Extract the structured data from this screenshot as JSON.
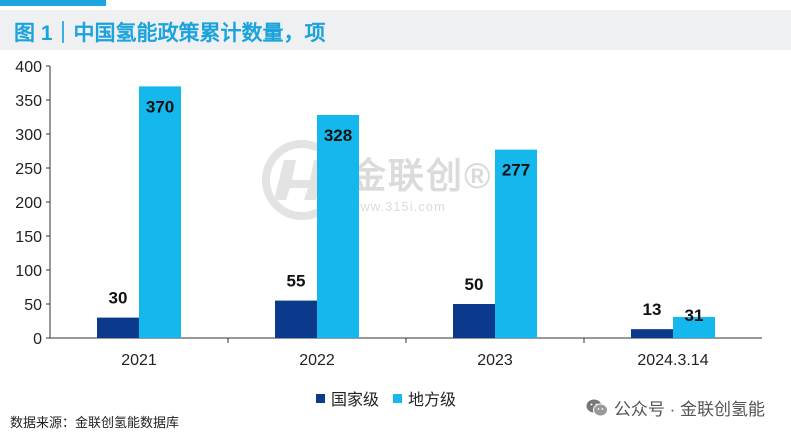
{
  "figure": {
    "title": "图 1｜中国氢能政策累计数量，项",
    "source": "数据来源：金联创氢能数据库",
    "watermark_brand": "金联创®",
    "watermark_url": "www.315i.com",
    "wechat_label": "公众号 · 金联创氢能"
  },
  "colors": {
    "national": "#0b3a8c",
    "local": "#14b8ec",
    "accent": "#1aa3dc"
  },
  "chart_data": {
    "type": "bar",
    "title": "中国氢能政策累计数量，项",
    "xlabel": "",
    "ylabel": "",
    "categories": [
      "2021",
      "2022",
      "2023",
      "2024.3.14"
    ],
    "series": [
      {
        "name": "国家级",
        "values": [
          30,
          55,
          50,
          13
        ]
      },
      {
        "name": "地方级",
        "values": [
          370,
          328,
          277,
          31
        ]
      }
    ],
    "ylim": [
      0,
      400
    ],
    "yticks": [
      0,
      50,
      100,
      150,
      200,
      250,
      300,
      350,
      400
    ],
    "legend": "bottom-center",
    "grid": false
  }
}
